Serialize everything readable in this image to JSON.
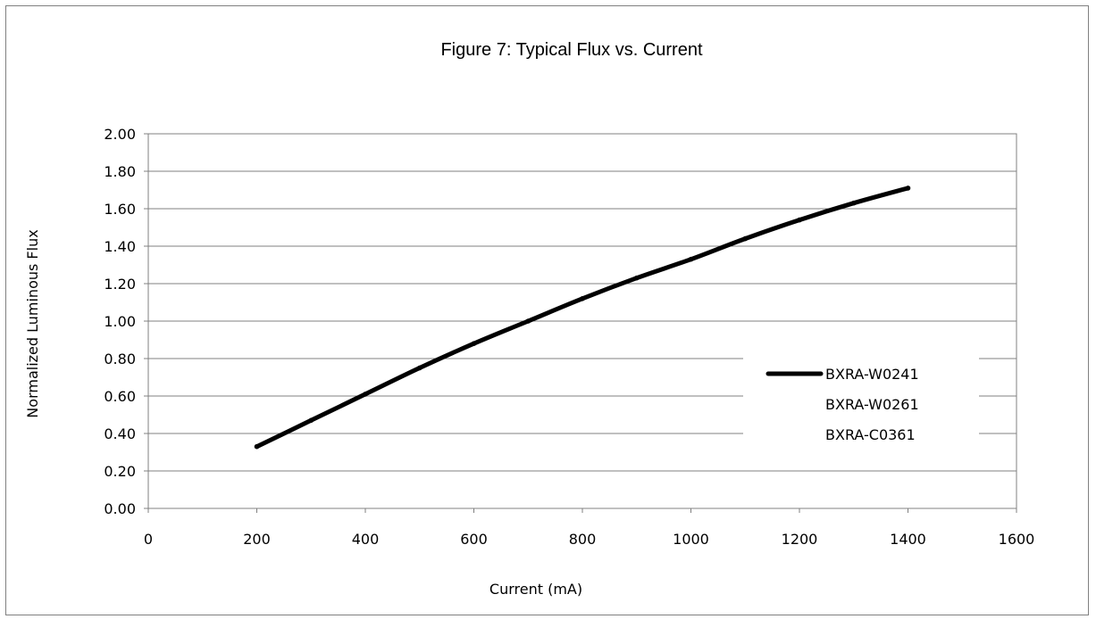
{
  "chart_data": {
    "type": "line",
    "title": "Figure 7:  Typical Flux vs. Current",
    "xlabel": "Current (mA)",
    "ylabel": "Normalized Luminous Flux",
    "xlim": [
      0,
      1600
    ],
    "ylim": [
      0,
      2.0
    ],
    "x_ticks": [
      "0",
      "200",
      "400",
      "600",
      "800",
      "1000",
      "1200",
      "1400",
      "1600"
    ],
    "y_ticks": [
      "0.00",
      "0.20",
      "0.40",
      "0.60",
      "0.80",
      "1.00",
      "1.20",
      "1.40",
      "1.60",
      "1.80",
      "2.00"
    ],
    "grid": "horizontal",
    "legend_position": "right",
    "legend": [
      "BXRA-W0241",
      "BXRA-W0261",
      "BXRA-C0361"
    ],
    "series": [
      {
        "name": "BXRA-W0241",
        "color": "#000000",
        "x": [
          200,
          300,
          400,
          500,
          600,
          700,
          800,
          900,
          1000,
          1100,
          1200,
          1300,
          1400
        ],
        "y": [
          0.33,
          0.47,
          0.61,
          0.75,
          0.88,
          1.0,
          1.12,
          1.23,
          1.33,
          1.44,
          1.54,
          1.63,
          1.71
        ]
      }
    ]
  }
}
